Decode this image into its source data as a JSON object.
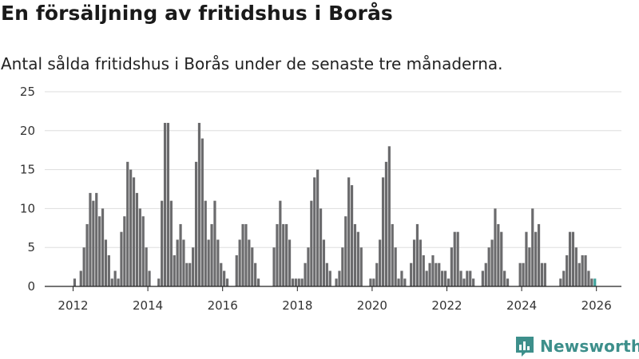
{
  "chart_data": {
    "type": "bar",
    "title": "En försäljning av fritidshus i Borås",
    "subtitle": "Antal sålda fritidshus i Borås under de senaste tre månaderna.",
    "xlabel": "",
    "ylabel": "",
    "ylim": [
      0,
      25
    ],
    "yticks": [
      0,
      5,
      10,
      15,
      20,
      25
    ],
    "xticks": [
      "2012",
      "2014",
      "2016",
      "2018",
      "2020",
      "2022",
      "2024",
      "2026"
    ],
    "start": "2011-01",
    "bar_color": "#6b6b6d",
    "highlight_color": "#3fa39c",
    "annotation": {
      "label": "1",
      "index": 180
    },
    "values": [
      0,
      0,
      0,
      0,
      0,
      0,
      0,
      0,
      0,
      0,
      0,
      0,
      1,
      0,
      2,
      5,
      8,
      12,
      11,
      12,
      9,
      10,
      6,
      4,
      1,
      2,
      1,
      7,
      9,
      16,
      15,
      14,
      12,
      10,
      9,
      5,
      2,
      0,
      0,
      1,
      11,
      21,
      21,
      11,
      4,
      6,
      8,
      6,
      3,
      3,
      5,
      16,
      21,
      19,
      11,
      6,
      8,
      11,
      6,
      3,
      2,
      1,
      0,
      0,
      4,
      6,
      8,
      8,
      6,
      5,
      3,
      1,
      0,
      0,
      0,
      0,
      5,
      8,
      11,
      8,
      8,
      6,
      1,
      1,
      1,
      1,
      3,
      5,
      11,
      14,
      15,
      10,
      6,
      3,
      2,
      0,
      1,
      2,
      5,
      9,
      14,
      13,
      8,
      7,
      5,
      0,
      0,
      1,
      1,
      3,
      6,
      14,
      16,
      18,
      8,
      5,
      1,
      2,
      1,
      0,
      3,
      6,
      8,
      6,
      4,
      2,
      3,
      4,
      3,
      3,
      2,
      2,
      1,
      5,
      7,
      7,
      2,
      1,
      2,
      2,
      1,
      0,
      0,
      2,
      3,
      5,
      6,
      10,
      8,
      7,
      2,
      1,
      0,
      0,
      0,
      3,
      3,
      7,
      5,
      10,
      7,
      8,
      3,
      3,
      0,
      0,
      0,
      0,
      1,
      2,
      4,
      7,
      7,
      5,
      3,
      4,
      4,
      2,
      1,
      1
    ]
  },
  "brand": {
    "name": "Newsworthy",
    "color": "#3d8f8b",
    "icon": "newsworthy-logo-icon"
  }
}
